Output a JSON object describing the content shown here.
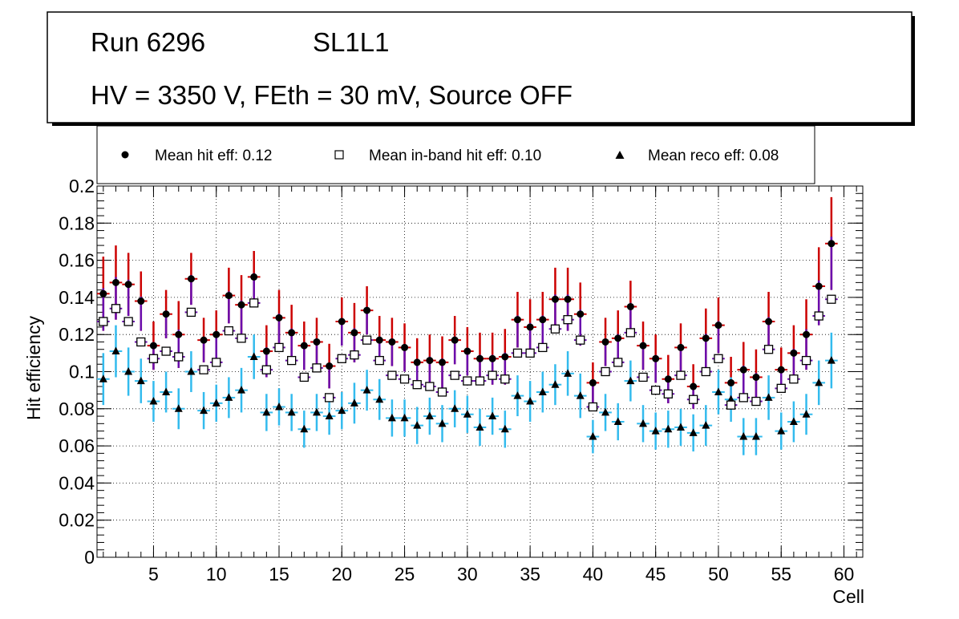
{
  "chart_data": {
    "type": "scatter",
    "title": {
      "run": "Run 6296",
      "layer": "SL1L1",
      "conditions": "HV = 3350 V, FEth = 30 mV, Source OFF"
    },
    "xlabel": "Cell",
    "ylabel": "Hit efficiency",
    "xlim": [
      0.5,
      61.5
    ],
    "ylim": [
      0,
      0.2
    ],
    "grid": true,
    "legend_position": "top",
    "x_ticks": [
      5,
      10,
      15,
      20,
      25,
      30,
      35,
      40,
      45,
      50,
      55,
      60
    ],
    "x_tick_labels": [
      "5",
      "10",
      "15",
      "20",
      "25",
      "30",
      "35",
      "40",
      "45",
      "50",
      "55",
      "60"
    ],
    "y_ticks": [
      0,
      0.02,
      0.04,
      0.06,
      0.08,
      0.1,
      0.12,
      0.14,
      0.16,
      0.18,
      0.2
    ],
    "y_tick_labels": [
      "0",
      "0.02",
      "0.04",
      "0.06",
      "0.08",
      "0.1",
      "0.12",
      "0.14",
      "0.16",
      "0.18",
      "0.2"
    ],
    "x": [
      1,
      2,
      3,
      4,
      5,
      6,
      7,
      8,
      9,
      10,
      11,
      12,
      13,
      14,
      15,
      16,
      17,
      18,
      19,
      20,
      21,
      22,
      23,
      24,
      25,
      26,
      27,
      28,
      29,
      30,
      31,
      32,
      33,
      34,
      35,
      36,
      37,
      38,
      39,
      40,
      41,
      42,
      43,
      44,
      45,
      46,
      47,
      48,
      49,
      50,
      51,
      52,
      53,
      54,
      55,
      56,
      57,
      58,
      59
    ],
    "series": [
      {
        "name": "Mean hit  eff: 0.12",
        "marker": "circle",
        "marker_color": "#000000",
        "error_color": "#cc0000",
        "values": [
          0.142,
          0.148,
          0.147,
          0.138,
          0.114,
          0.131,
          0.12,
          0.15,
          0.117,
          0.12,
          0.141,
          0.136,
          0.151,
          0.111,
          0.129,
          0.121,
          0.114,
          0.116,
          0.103,
          0.127,
          0.121,
          0.133,
          0.117,
          0.116,
          0.113,
          0.105,
          0.106,
          0.105,
          0.117,
          0.111,
          0.107,
          0.107,
          0.108,
          0.128,
          0.124,
          0.128,
          0.139,
          0.139,
          0.131,
          0.094,
          0.116,
          0.118,
          0.135,
          0.114,
          0.107,
          0.096,
          0.113,
          0.092,
          0.118,
          0.125,
          0.094,
          0.101,
          0.097,
          0.127,
          0.101,
          0.11,
          0.12,
          0.146,
          0.169
        ],
        "errors": [
          0.02,
          0.02,
          0.017,
          0.016,
          0.013,
          0.013,
          0.018,
          0.014,
          0.012,
          0.013,
          0.015,
          0.016,
          0.014,
          0.014,
          0.015,
          0.015,
          0.013,
          0.013,
          0.012,
          0.013,
          0.016,
          0.013,
          0.013,
          0.013,
          0.013,
          0.013,
          0.014,
          0.014,
          0.013,
          0.013,
          0.014,
          0.014,
          0.015,
          0.015,
          0.015,
          0.015,
          0.017,
          0.017,
          0.017,
          0.011,
          0.013,
          0.015,
          0.014,
          0.013,
          0.013,
          0.013,
          0.013,
          0.012,
          0.016,
          0.015,
          0.014,
          0.015,
          0.015,
          0.016,
          0.012,
          0.015,
          0.019,
          0.021,
          0.025
        ]
      },
      {
        "name": "Mean in-band hit eff: 0.10",
        "marker": "open-square",
        "marker_color": "#000000",
        "error_color": "#6a0dad",
        "values": [
          0.127,
          0.134,
          0.127,
          0.116,
          0.107,
          0.111,
          0.108,
          0.132,
          0.101,
          0.105,
          0.122,
          0.118,
          0.137,
          0.101,
          0.113,
          0.106,
          0.097,
          0.102,
          0.086,
          0.107,
          0.109,
          0.117,
          0.106,
          0.098,
          0.096,
          0.093,
          0.092,
          0.089,
          0.098,
          0.095,
          0.095,
          0.098,
          0.096,
          0.11,
          0.11,
          0.113,
          0.123,
          0.128,
          0.117,
          0.081,
          0.1,
          0.105,
          0.121,
          0.097,
          0.09,
          0.088,
          0.098,
          0.085,
          0.1,
          0.107,
          0.082,
          0.086,
          0.084,
          0.112,
          0.091,
          0.096,
          0.106,
          0.13,
          0.139
        ]
      },
      {
        "name": "Mean reco eff: 0.08",
        "marker": "triangle",
        "marker_color": "#000000",
        "error_color": "#33bbee",
        "values": [
          0.096,
          0.111,
          0.1,
          0.095,
          0.084,
          0.089,
          0.08,
          0.1,
          0.079,
          0.083,
          0.086,
          0.09,
          0.108,
          0.078,
          0.081,
          0.078,
          0.069,
          0.078,
          0.076,
          0.079,
          0.083,
          0.09,
          0.085,
          0.075,
          0.075,
          0.071,
          0.076,
          0.072,
          0.08,
          0.077,
          0.07,
          0.076,
          0.069,
          0.087,
          0.084,
          0.089,
          0.093,
          0.099,
          0.087,
          0.065,
          0.078,
          0.073,
          0.095,
          0.072,
          0.068,
          0.069,
          0.07,
          0.067,
          0.071,
          0.089,
          0.085,
          0.065,
          0.065,
          0.086,
          0.068,
          0.073,
          0.077,
          0.094,
          0.106
        ],
        "errors": [
          0.014,
          0.014,
          0.013,
          0.012,
          0.011,
          0.011,
          0.011,
          0.011,
          0.01,
          0.01,
          0.011,
          0.012,
          0.012,
          0.01,
          0.01,
          0.01,
          0.01,
          0.01,
          0.01,
          0.01,
          0.011,
          0.011,
          0.011,
          0.01,
          0.01,
          0.01,
          0.01,
          0.01,
          0.01,
          0.01,
          0.01,
          0.01,
          0.01,
          0.011,
          0.011,
          0.011,
          0.011,
          0.012,
          0.012,
          0.009,
          0.01,
          0.01,
          0.011,
          0.01,
          0.01,
          0.01,
          0.01,
          0.01,
          0.011,
          0.012,
          0.012,
          0.01,
          0.01,
          0.012,
          0.01,
          0.011,
          0.011,
          0.012,
          0.015
        ]
      }
    ]
  }
}
